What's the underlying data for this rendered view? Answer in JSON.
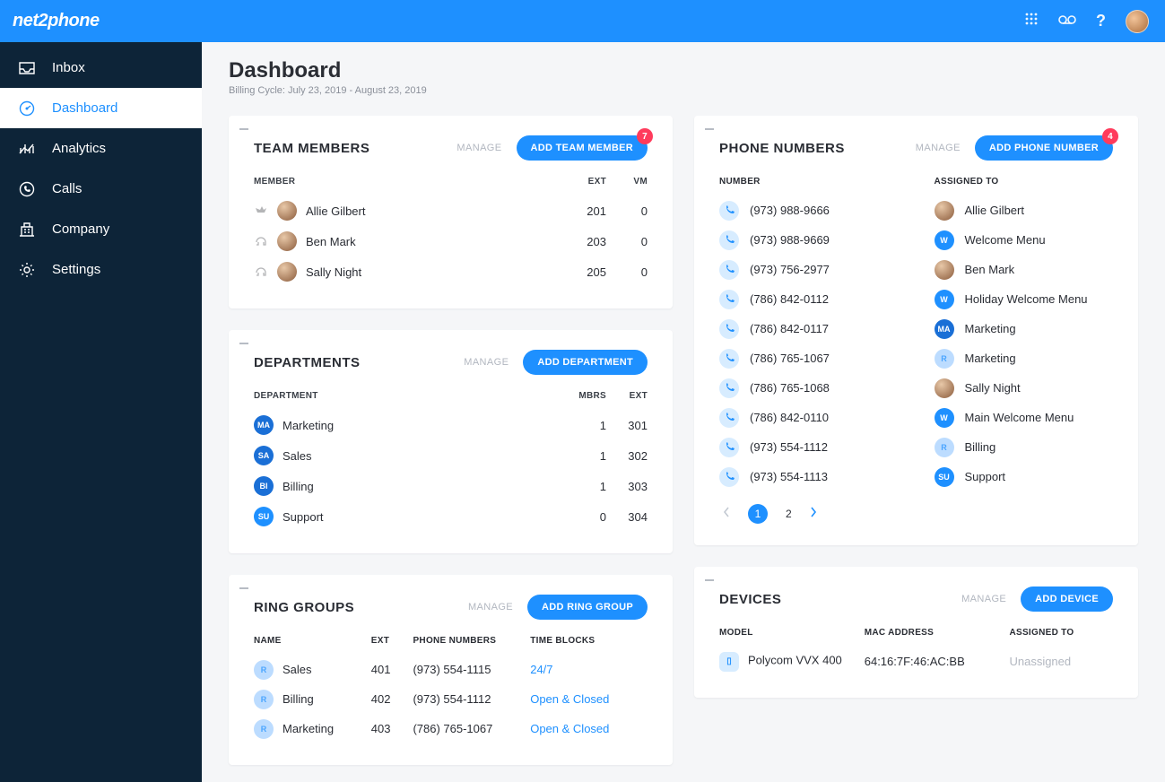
{
  "brand": "net2phone",
  "colors": {
    "accent": "#1e90ff",
    "sidebar": "#0d2438",
    "badge": "#ff3b5c",
    "bg": "#f5f6f8"
  },
  "sidebar": {
    "items": [
      {
        "label": "Inbox"
      },
      {
        "label": "Dashboard"
      },
      {
        "label": "Analytics"
      },
      {
        "label": "Calls"
      },
      {
        "label": "Company"
      },
      {
        "label": "Settings"
      }
    ],
    "activeIndex": 1
  },
  "page": {
    "title": "Dashboard",
    "billing_cycle": "Billing Cycle: July 23, 2019 - August 23, 2019"
  },
  "teamMembers": {
    "title": "TEAM MEMBERS",
    "manage": "MANAGE",
    "add": "ADD TEAM MEMBER",
    "badge": "7",
    "cols": {
      "member": "MEMBER",
      "ext": "EXT",
      "vm": "VM"
    },
    "rows": [
      {
        "name": "Allie Gilbert",
        "ext": "201",
        "vm": "0",
        "icon": "crown"
      },
      {
        "name": "Ben Mark",
        "ext": "203",
        "vm": "0",
        "icon": "headset"
      },
      {
        "name": "Sally Night",
        "ext": "205",
        "vm": "0",
        "icon": "headset"
      }
    ]
  },
  "departments": {
    "title": "DEPARTMENTS",
    "manage": "MANAGE",
    "add": "ADD DEPARTMENT",
    "cols": {
      "dept": "DEPARTMENT",
      "mbrs": "MBRS",
      "ext": "EXT"
    },
    "rows": [
      {
        "code": "MA",
        "name": "Marketing",
        "mbrs": "1",
        "ext": "301",
        "chip": "solid"
      },
      {
        "code": "SA",
        "name": "Sales",
        "mbrs": "1",
        "ext": "302",
        "chip": "solid"
      },
      {
        "code": "BI",
        "name": "Billing",
        "mbrs": "1",
        "ext": "303",
        "chip": "solid"
      },
      {
        "code": "SU",
        "name": "Support",
        "mbrs": "0",
        "ext": "304",
        "chip": "blue"
      }
    ]
  },
  "phoneNumbers": {
    "title": "PHONE NUMBERS",
    "manage": "MANAGE",
    "add": "ADD PHONE NUMBER",
    "badge": "4",
    "cols": {
      "number": "NUMBER",
      "assigned": "ASSIGNED TO"
    },
    "rows": [
      {
        "number": "(973) 988-9666",
        "assigned": "Allie Gilbert",
        "badge": {
          "type": "avatar"
        }
      },
      {
        "number": "(973) 988-9669",
        "assigned": "Welcome Menu",
        "badge": {
          "type": "chip",
          "text": "W",
          "style": "blue"
        }
      },
      {
        "number": "(973) 756-2977",
        "assigned": "Ben Mark",
        "badge": {
          "type": "avatar"
        }
      },
      {
        "number": "(786) 842-0112",
        "assigned": "Holiday Welcome Menu",
        "badge": {
          "type": "chip",
          "text": "W",
          "style": "blue"
        }
      },
      {
        "number": "(786) 842-0117",
        "assigned": "Marketing",
        "badge": {
          "type": "chip",
          "text": "MA",
          "style": "solid"
        }
      },
      {
        "number": "(786) 765-1067",
        "assigned": "Marketing",
        "badge": {
          "type": "chip",
          "text": "R",
          "style": "light"
        }
      },
      {
        "number": "(786) 765-1068",
        "assigned": "Sally Night",
        "badge": {
          "type": "avatar"
        }
      },
      {
        "number": "(786) 842-0110",
        "assigned": "Main Welcome Menu",
        "badge": {
          "type": "chip",
          "text": "W",
          "style": "blue"
        }
      },
      {
        "number": "(973) 554-1112",
        "assigned": "Billing",
        "badge": {
          "type": "chip",
          "text": "R",
          "style": "light"
        }
      },
      {
        "number": "(973) 554-1113",
        "assigned": "Support",
        "badge": {
          "type": "chip",
          "text": "SU",
          "style": "blue"
        }
      }
    ],
    "pager": {
      "current": "1",
      "pages": [
        "1",
        "2"
      ]
    }
  },
  "ringGroups": {
    "title": "RING GROUPS",
    "manage": "MANAGE",
    "add": "ADD RING GROUP",
    "cols": {
      "name": "NAME",
      "ext": "EXT",
      "phones": "PHONE NUMBERS",
      "time": "TIME BLOCKS"
    },
    "rows": [
      {
        "name": "Sales",
        "ext": "401",
        "phone": "(973) 554-1115",
        "time": "24/7"
      },
      {
        "name": "Billing",
        "ext": "402",
        "phone": "(973) 554-1112",
        "time": "Open & Closed"
      },
      {
        "name": "Marketing",
        "ext": "403",
        "phone": "(786) 765-1067",
        "time": "Open & Closed"
      }
    ]
  },
  "devices": {
    "title": "DEVICES",
    "manage": "MANAGE",
    "add": "ADD DEVICE",
    "cols": {
      "model": "MODEL",
      "mac": "MAC ADDRESS",
      "assigned": "ASSIGNED TO"
    },
    "rows": [
      {
        "model": "Polycom VVX 400",
        "mac": "64:16:7F:46:AC:BB",
        "assigned": "Unassigned"
      }
    ]
  }
}
